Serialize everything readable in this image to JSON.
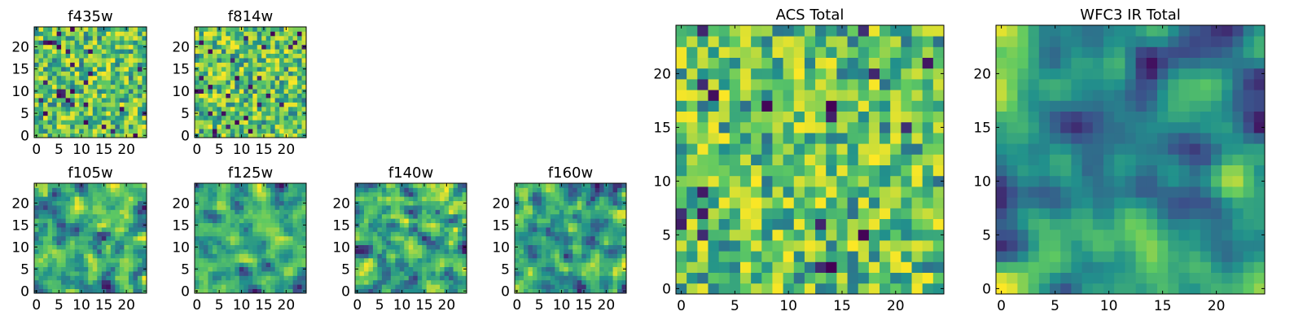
{
  "figure": {
    "colormap_stops": [
      "#440154",
      "#3b528b",
      "#21918c",
      "#5ec962",
      "#fde725"
    ]
  },
  "chart_data": [
    {
      "type": "heatmap",
      "title": "f435w",
      "size": "small",
      "grid_shape": [
        25,
        25
      ],
      "seed": 11,
      "smooth": 0,
      "value_range": [
        0,
        1
      ],
      "xlim": [
        -0.5,
        24.5
      ],
      "ylim": [
        -0.5,
        24.5
      ],
      "xticks": [
        0,
        5,
        10,
        15,
        20
      ],
      "yticks": [
        0,
        5,
        10,
        15,
        20
      ]
    },
    {
      "type": "heatmap",
      "title": "f814w",
      "size": "small",
      "grid_shape": [
        25,
        25
      ],
      "seed": 23,
      "smooth": 0,
      "value_range": [
        0,
        1
      ],
      "xlim": [
        -0.5,
        24.5
      ],
      "ylim": [
        -0.5,
        24.5
      ],
      "xticks": [
        0,
        5,
        10,
        15,
        20
      ],
      "yticks": [
        0,
        5,
        10,
        15,
        20
      ]
    },
    {
      "type": "heatmap",
      "title": "f105w",
      "size": "small",
      "grid_shape": [
        25,
        25
      ],
      "seed": 37,
      "smooth": 1,
      "value_range": [
        0,
        1
      ],
      "xlim": [
        -0.5,
        24.5
      ],
      "ylim": [
        -0.5,
        24.5
      ],
      "xticks": [
        0,
        5,
        10,
        15,
        20
      ],
      "yticks": [
        0,
        5,
        10,
        15,
        20
      ]
    },
    {
      "type": "heatmap",
      "title": "f125w",
      "size": "small",
      "grid_shape": [
        25,
        25
      ],
      "seed": 41,
      "smooth": 1,
      "value_range": [
        0,
        1
      ],
      "xlim": [
        -0.5,
        24.5
      ],
      "ylim": [
        -0.5,
        24.5
      ],
      "xticks": [
        0,
        5,
        10,
        15,
        20
      ],
      "yticks": [
        0,
        5,
        10,
        15,
        20
      ]
    },
    {
      "type": "heatmap",
      "title": "f140w",
      "size": "small",
      "grid_shape": [
        25,
        25
      ],
      "seed": 53,
      "smooth": 1,
      "value_range": [
        0,
        1
      ],
      "xlim": [
        -0.5,
        24.5
      ],
      "ylim": [
        -0.5,
        24.5
      ],
      "xticks": [
        0,
        5,
        10,
        15,
        20
      ],
      "yticks": [
        0,
        5,
        10,
        15,
        20
      ]
    },
    {
      "type": "heatmap",
      "title": "f160w",
      "size": "small",
      "grid_shape": [
        25,
        25
      ],
      "seed": 67,
      "smooth": 1,
      "value_range": [
        0,
        1
      ],
      "xlim": [
        -0.5,
        24.5
      ],
      "ylim": [
        -0.5,
        24.5
      ],
      "xticks": [
        0,
        5,
        10,
        15,
        20
      ],
      "yticks": [
        0,
        5,
        10,
        15,
        20
      ]
    },
    {
      "type": "heatmap",
      "title": "ACS Total",
      "size": "large",
      "grid_shape": [
        25,
        25
      ],
      "seed": 79,
      "smooth": 0,
      "value_range": [
        0,
        1
      ],
      "xlim": [
        -0.5,
        24.5
      ],
      "ylim": [
        -0.5,
        24.5
      ],
      "xticks": [
        0,
        5,
        10,
        15,
        20
      ],
      "yticks": [
        0,
        5,
        10,
        15,
        20
      ]
    },
    {
      "type": "heatmap",
      "title": "WFC3 IR Total",
      "size": "large",
      "grid_shape": [
        25,
        25
      ],
      "seed": 97,
      "smooth": 2,
      "value_range": [
        0,
        1
      ],
      "xlim": [
        -0.5,
        24.5
      ],
      "ylim": [
        -0.5,
        24.5
      ],
      "xticks": [
        0,
        5,
        10,
        15,
        20
      ],
      "yticks": [
        0,
        5,
        10,
        15,
        20
      ]
    }
  ]
}
